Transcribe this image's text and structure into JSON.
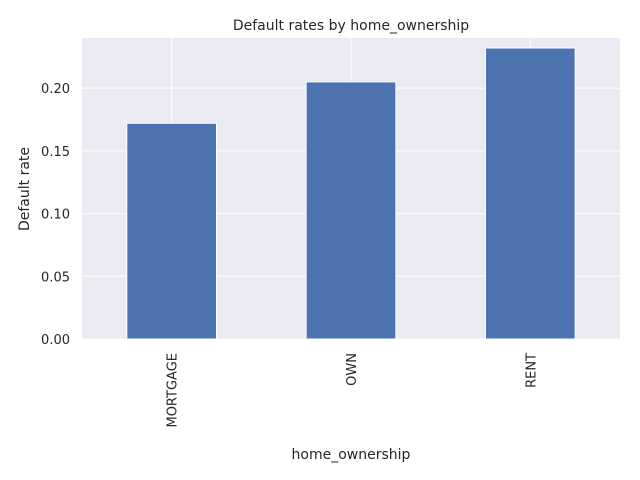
{
  "chart_data": {
    "type": "bar",
    "title": "Default rates by home_ownership",
    "xlabel": "home_ownership",
    "ylabel": "Default rate",
    "categories": [
      "MORTGAGE",
      "OWN",
      "RENT"
    ],
    "values": [
      0.172,
      0.205,
      0.232
    ],
    "ylim": [
      0,
      0.24
    ],
    "yticks": [
      0.0,
      0.05,
      0.1,
      0.15,
      0.2
    ],
    "ytick_labels": [
      "0.00",
      "0.05",
      "0.10",
      "0.15",
      "0.20"
    ],
    "grid": true,
    "bar_color": "#4c72b0",
    "plot_background": "#eaeaf2",
    "grid_color": "#ffffff"
  }
}
